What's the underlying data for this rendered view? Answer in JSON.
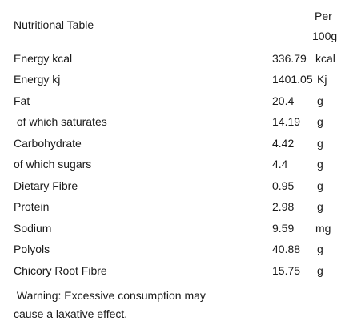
{
  "table": {
    "title": "Nutritional Table",
    "per_label": "Per",
    "per_unit": "100g",
    "rows": [
      {
        "name": "Energy kcal",
        "value": "336.79",
        "unit": "kcal"
      },
      {
        "name": "Energy kj",
        "value": "1401.05",
        "unit": "Kj"
      },
      {
        "name": "Fat",
        "value": "20.4",
        "unit": "g"
      },
      {
        "name": " of which saturates",
        "value": "14.19",
        "unit": "g"
      },
      {
        "name": "Carbohydrate",
        "value": "4.42",
        "unit": "g"
      },
      {
        "name": "of which sugars",
        "value": "4.4",
        "unit": "g"
      },
      {
        "name": "Dietary Fibre",
        "value": "0.95",
        "unit": "g"
      },
      {
        "name": "Protein",
        "value": "2.98",
        "unit": "g"
      },
      {
        "name": "Sodium",
        "value": "9.59",
        "unit": "mg"
      },
      {
        "name": "Polyols",
        "value": "40.88",
        "unit": "g"
      },
      {
        "name": "Chicory Root Fibre",
        "value": "15.75",
        "unit": "g"
      }
    ]
  },
  "warning": {
    "line1": " Warning: Excessive consumption may",
    "line2": "cause a laxative effect."
  }
}
